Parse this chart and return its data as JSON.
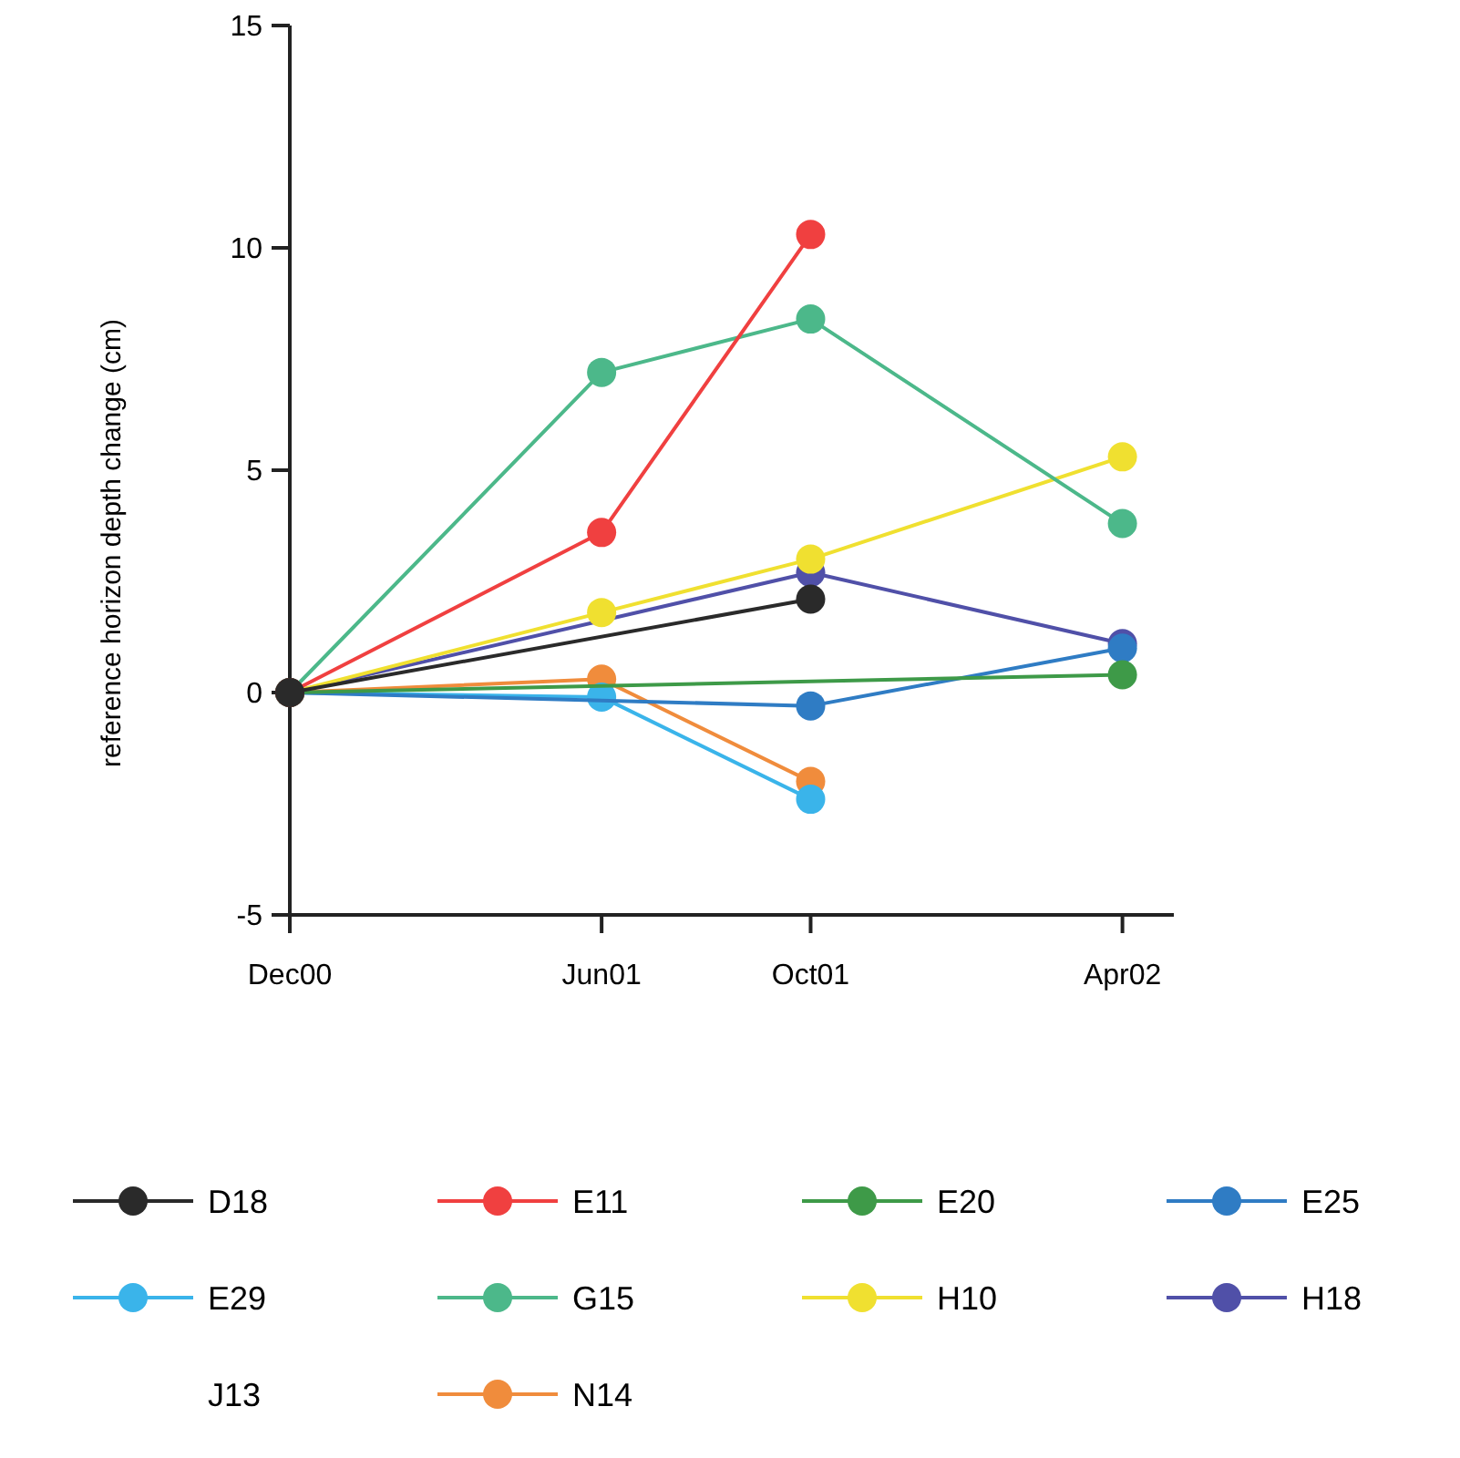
{
  "chart_data": {
    "type": "line",
    "ylabel": "reference horizon depth change (cm)",
    "x": [
      "2000-12",
      "2001-06",
      "2001-10",
      "2002-04"
    ],
    "xlim": [
      "2000-12",
      "2002-05"
    ],
    "xticks": [
      {
        "value": "2000-12",
        "label": "Dec00"
      },
      {
        "value": "2001-06",
        "label": "Jun01"
      },
      {
        "value": "2001-10",
        "label": "Oct01"
      },
      {
        "value": "2002-04",
        "label": "Apr02"
      }
    ],
    "ylim": [
      -5,
      15
    ],
    "yticks": [
      -5,
      0,
      5,
      10,
      15
    ],
    "grid": false,
    "legend": "bottom",
    "marker": "circle",
    "line_style": "solid",
    "series": [
      {
        "name": "D18",
        "color": "#2a2a2a",
        "x": [
          "2000-12",
          "2001-10"
        ],
        "values": [
          0,
          2.1
        ]
      },
      {
        "name": "E11",
        "color": "#f04040",
        "x": [
          "2000-12",
          "2001-06",
          "2001-10"
        ],
        "values": [
          0,
          3.6,
          10.3
        ]
      },
      {
        "name": "E20",
        "color": "#3e9a48",
        "x": [
          "2000-12",
          "2002-04"
        ],
        "values": [
          0,
          0.4
        ]
      },
      {
        "name": "E25",
        "color": "#2f7cc4",
        "x": [
          "2000-12",
          "2001-10",
          "2002-04"
        ],
        "values": [
          0,
          -0.3,
          1.0
        ]
      },
      {
        "name": "E29",
        "color": "#3ab4ea",
        "x": [
          "2000-12",
          "2001-06",
          "2001-10"
        ],
        "values": [
          0,
          -0.1,
          -2.4
        ]
      },
      {
        "name": "G15",
        "color": "#4cb88a",
        "values": [
          0,
          7.2,
          8.4,
          3.8
        ]
      },
      {
        "name": "H10",
        "color": "#f0e030",
        "values": [
          0,
          1.8,
          3.0,
          5.3
        ]
      },
      {
        "name": "H18",
        "color": "#5050a8",
        "x": [
          "2000-12",
          "2001-10",
          "2002-04"
        ],
        "values": [
          0,
          2.7,
          1.1
        ]
      },
      {
        "name": "J13",
        "values": [
          null,
          null,
          null,
          null
        ]
      },
      {
        "name": "N14",
        "color": "#f08c3c",
        "x": [
          "2000-12",
          "2001-06",
          "2001-10"
        ],
        "values": [
          0,
          0.3,
          -2.0
        ]
      }
    ]
  }
}
